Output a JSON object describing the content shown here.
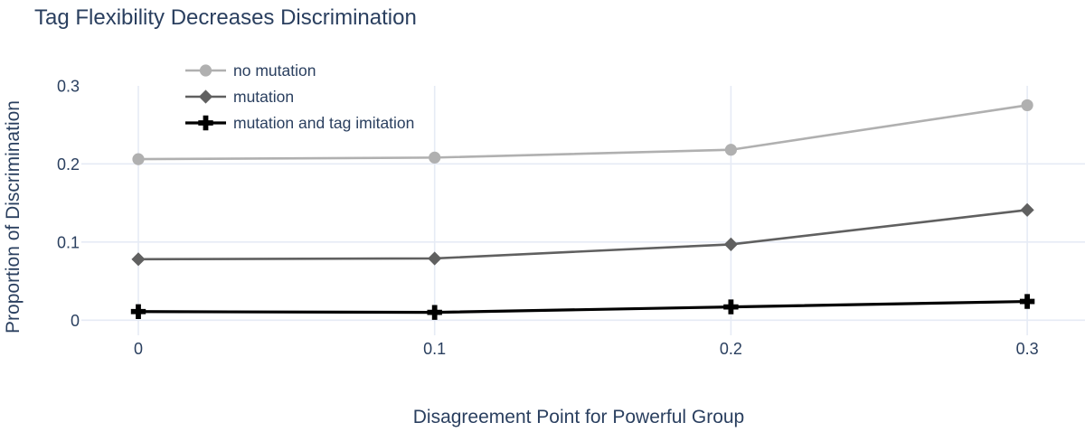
{
  "chart_data": {
    "type": "line",
    "title": "Tag Flexibility Decreases Discrimination",
    "xlabel": "Disagreement Point for Powerful Group",
    "ylabel": "Proportion of Discrimination",
    "x": [
      0,
      0.1,
      0.2,
      0.3
    ],
    "x_ticks": [
      {
        "value": 0,
        "label": "0"
      },
      {
        "value": 0.1,
        "label": "0.1"
      },
      {
        "value": 0.2,
        "label": "0.2"
      },
      {
        "value": 0.3,
        "label": "0.3"
      }
    ],
    "y_ticks": [
      {
        "value": 0,
        "label": "0"
      },
      {
        "value": 0.1,
        "label": "0.1"
      },
      {
        "value": 0.2,
        "label": "0.2"
      },
      {
        "value": 0.3,
        "label": "0.3"
      }
    ],
    "xlim": [
      -0.019,
      0.319
    ],
    "ylim": [
      -0.019,
      0.3
    ],
    "grid": true,
    "legend_position": "top-left-inside",
    "series": [
      {
        "name": "no mutation",
        "marker": "circle",
        "color": "#b0b0b0",
        "line_width": 2.6,
        "values": [
          0.206,
          0.208,
          0.218,
          0.275
        ]
      },
      {
        "name": "mutation",
        "marker": "diamond",
        "color": "#606060",
        "line_width": 2.6,
        "values": [
          0.078,
          0.079,
          0.097,
          0.141
        ]
      },
      {
        "name": "mutation and tag imitation",
        "marker": "plus",
        "color": "#000000",
        "line_width": 3.2,
        "values": [
          0.011,
          0.01,
          0.017,
          0.024
        ]
      }
    ],
    "colors": {
      "text": "#2a3f5f",
      "grid": "#e6ebf5",
      "background": "#ffffff"
    }
  }
}
